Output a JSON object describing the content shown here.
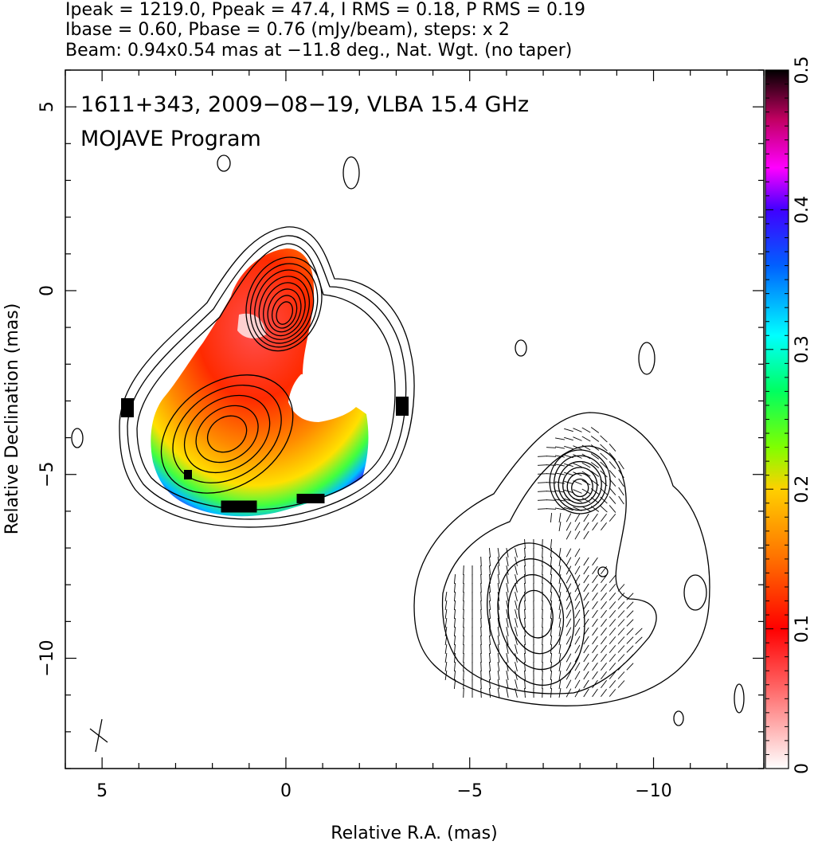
{
  "header": {
    "line1": "Ipeak = 1219.0, Ppeak = 47.4, I RMS = 0.18, P RMS = 0.19",
    "line2": "Ibase = 0.60, Pbase = 0.76 (mJy/beam), steps: x 2",
    "line3": "Beam: 0.94x0.54 mas at −11.8 deg., Nat. Wgt. (no taper)"
  },
  "annotation": {
    "line1": "1611+343, 2009−08−19, VLBA 15.4 GHz",
    "line2": "MOJAVE Program"
  },
  "chart_data": {
    "type": "heatmap",
    "title": "1611+343, 2009−08−19, VLBA 15.4 GHz",
    "subtitle": "MOJAVE Program",
    "xlabel": "Relative R.A. (mas)",
    "ylabel": "Relative Declination (mas)",
    "xlim": [
      6,
      -13
    ],
    "ylim": [
      -13,
      6
    ],
    "x_ticks": [
      5,
      0,
      -5,
      -10
    ],
    "x_tick_labels": [
      "5",
      "0",
      "−5",
      "−10"
    ],
    "y_ticks": [
      5,
      0,
      -5,
      -10
    ],
    "y_tick_labels": [
      "5",
      "0",
      "−5",
      "−10"
    ],
    "colorbar": {
      "range": [
        0,
        0.5
      ],
      "ticks": [
        0,
        0.1,
        0.2,
        0.3,
        0.4,
        0.5
      ],
      "tick_labels": [
        "0",
        "0.1",
        "0.2",
        "0.3",
        "0.4",
        "0.5"
      ]
    },
    "stats": {
      "Ipeak_mJy_per_beam": 1219.0,
      "Ppeak_mJy_per_beam": 47.4,
      "I_RMS": 0.18,
      "P_RMS": 0.19,
      "Ibase": 0.6,
      "Pbase": 0.76,
      "contour_step_factor": 2,
      "beam_major_mas": 0.94,
      "beam_minor_mas": 0.54,
      "beam_pa_deg": -11.8
    },
    "panels": [
      {
        "name": "fractional polarization map",
        "center": [
          0.0,
          -0.2
        ],
        "contour_levels": 11
      },
      {
        "name": "polarized intensity with EVPA ticks",
        "center": [
          -8.0,
          -5.2
        ],
        "contour_levels": 6
      }
    ]
  },
  "colors": {
    "contour": "#000000",
    "colormap": [
      "#ffffff",
      "#ff0000",
      "#ff8c00",
      "#ffff00",
      "#00ff00",
      "#00ffff",
      "#0000ff",
      "#ff00ff",
      "#000000"
    ]
  }
}
